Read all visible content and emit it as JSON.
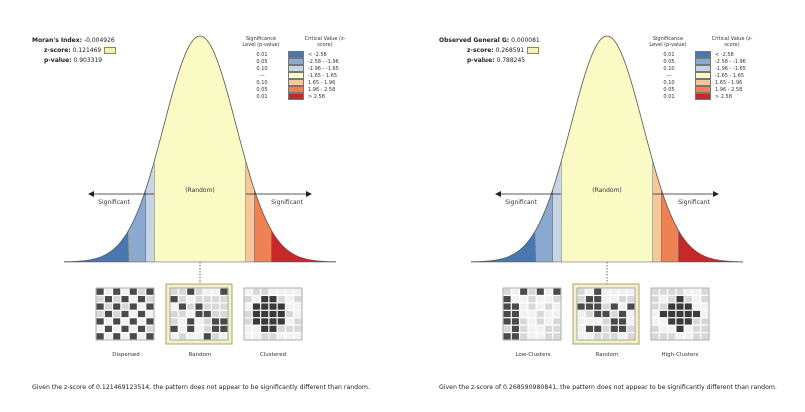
{
  "panels": [
    {
      "stat_label": "Moran's Index:",
      "stat_value": "-0.004926",
      "z_label": "z-score:",
      "z_value": "0.121469",
      "p_label": "p-value:",
      "p_value": "0.903319",
      "legend_header_left": "Significance Level (p-value)",
      "legend_header_right": "Critical Value (z-score)",
      "legend": [
        {
          "level": "0.01",
          "value": "< -2.58",
          "color": "#4a77b0"
        },
        {
          "level": "0.05",
          "value": "-2.58 - -1.96",
          "color": "#89a9cf"
        },
        {
          "level": "0.10",
          "value": "-1.96 - -1.65",
          "color": "#c6d5e3"
        },
        {
          "level": "---",
          "value": "-1.65 - 1.65",
          "color": "#fafac4"
        },
        {
          "level": "0.10",
          "value": "1.65 - 1.96",
          "color": "#f7c79a"
        },
        {
          "level": "0.05",
          "value": "1.96 - 2.58",
          "color": "#ef8254"
        },
        {
          "level": "0.01",
          "value": "> 2.58",
          "color": "#c8282a"
        }
      ],
      "significant_left": "Significant",
      "random_label": "(Random)",
      "significant_right": "Significant",
      "patterns": [
        "Dispersed",
        "Random",
        "Clustered"
      ],
      "caption": "Given the z-score of 0.121469123514, the pattern does not appear to be significantly different than random."
    },
    {
      "stat_label": "Observed General G:",
      "stat_value": "0.000081",
      "z_label": "z-score:",
      "z_value": "0.268591",
      "p_label": "p-value:",
      "p_value": "0.788245",
      "legend_header_left": "Significance Level (p-value)",
      "legend_header_right": "Critical Value (z-score)",
      "legend": [
        {
          "level": "0.01",
          "value": "< -2.58",
          "color": "#4a77b0"
        },
        {
          "level": "0.05",
          "value": "-2.58 - -1.96",
          "color": "#89a9cf"
        },
        {
          "level": "0.10",
          "value": "-1.96 - -1.65",
          "color": "#c6d5e3"
        },
        {
          "level": "---",
          "value": "-1.65 - 1.65",
          "color": "#fafac4"
        },
        {
          "level": "0.10",
          "value": "1.65 - 1.96",
          "color": "#f7c79a"
        },
        {
          "level": "0.05",
          "value": "1.96 - 2.58",
          "color": "#ef8254"
        },
        {
          "level": "0.01",
          "value": "> 2.58",
          "color": "#c8282a"
        }
      ],
      "significant_left": "Significant",
      "random_label": "(Random)",
      "significant_right": "Significant",
      "patterns": [
        "Low-Clusters",
        "Random",
        "High-Clusters"
      ],
      "caption": "Given the z-score of 0.268590980841, the pattern does not appear to be significantly different than random."
    }
  ]
}
